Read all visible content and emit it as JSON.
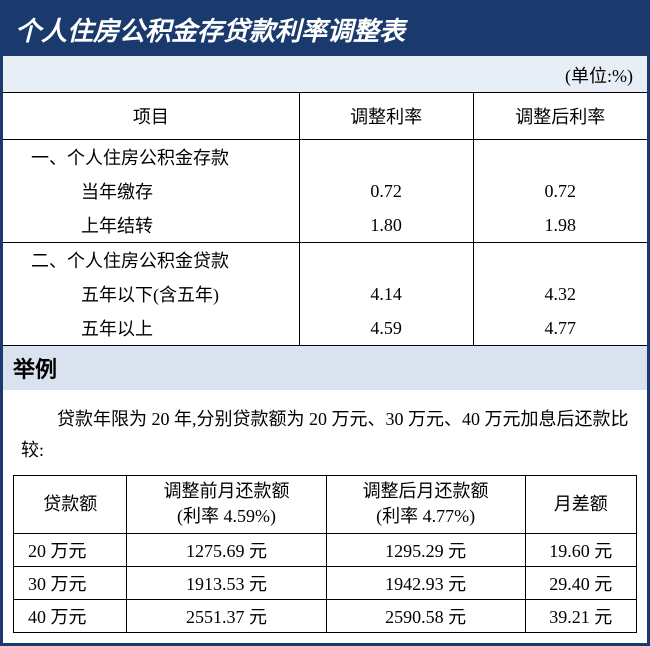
{
  "title": "个人住房公积金存贷款利率调整表",
  "unit": "(单位:%)",
  "rate_table": {
    "headers": {
      "project": "项目",
      "before": "调整利率",
      "after": "调整后利率"
    },
    "section1": {
      "label": "一、个人住房公积金存款",
      "rows": [
        {
          "label": "当年缴存",
          "before": "0.72",
          "after": "0.72"
        },
        {
          "label": "上年结转",
          "before": "1.80",
          "after": "1.98"
        }
      ]
    },
    "section2": {
      "label": "二、个人住房公积金贷款",
      "rows": [
        {
          "label": "五年以下(含五年)",
          "before": "4.14",
          "after": "4.32"
        },
        {
          "label": "五年以上",
          "before": "4.59",
          "after": "4.77"
        }
      ]
    }
  },
  "example": {
    "header": "举例",
    "text": "贷款年限为 20 年,分别贷款额为 20 万元、30 万元、40 万元加息后还款比较:",
    "headers": {
      "amount": "贷款额",
      "before_top": "调整前月还款额",
      "before_sub": "(利率 4.59%)",
      "after_top": "调整后月还款额",
      "after_sub": "(利率 4.77%)",
      "diff": "月差额"
    },
    "rows": [
      {
        "amount": "20 万元",
        "before": "1275.69 元",
        "after": "1295.29 元",
        "diff": "19.60 元"
      },
      {
        "amount": "30 万元",
        "before": "1913.53 元",
        "after": "1942.93 元",
        "diff": "29.40 元"
      },
      {
        "amount": "40 万元",
        "before": "2551.37 元",
        "after": "2590.58 元",
        "diff": "39.21 元"
      }
    ]
  },
  "colors": {
    "brand": "#1a3a6e",
    "header_bg": "#d9e3ef",
    "unit_bg": "#e8eef5",
    "text": "#000000",
    "white": "#ffffff"
  }
}
